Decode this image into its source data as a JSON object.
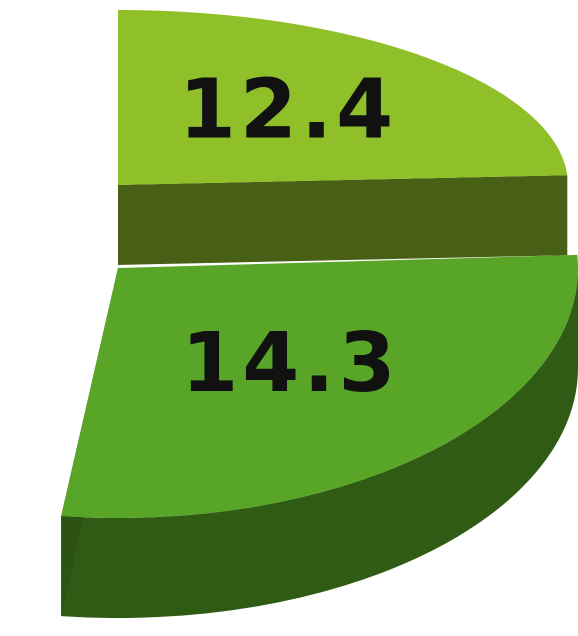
{
  "chart_data": {
    "type": "pie",
    "values": [
      12.4,
      14.3
    ],
    "colors": [
      "#8fbf29",
      "#58a527"
    ]
  }
}
